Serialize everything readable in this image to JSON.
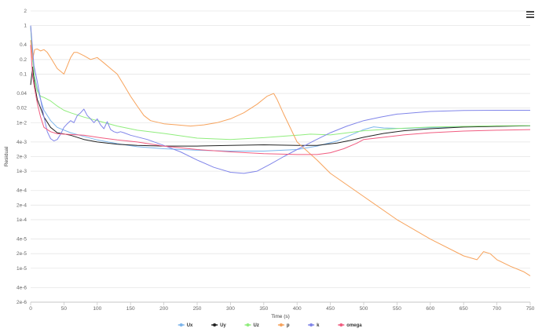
{
  "chart_data": {
    "type": "line",
    "title": "",
    "xlabel": "Time (s)",
    "ylabel": "Residual",
    "xlim": [
      0,
      750
    ],
    "ylog": true,
    "xticks": [
      0,
      50,
      100,
      150,
      200,
      250,
      300,
      350,
      400,
      450,
      500,
      550,
      600,
      650,
      700,
      750
    ],
    "yticks": [
      {
        "value": 2,
        "label": "2"
      },
      {
        "value": 1,
        "label": "1"
      },
      {
        "value": 0.4,
        "label": "0.4"
      },
      {
        "value": 0.2,
        "label": "0.2"
      },
      {
        "value": 0.1,
        "label": "0.1"
      },
      {
        "value": 0.04,
        "label": "0.04"
      },
      {
        "value": 0.02,
        "label": "0.02"
      },
      {
        "value": 0.01,
        "label": "1e-2"
      },
      {
        "value": 0.004,
        "label": "4e-3"
      },
      {
        "value": 0.002,
        "label": "2e-3"
      },
      {
        "value": 0.001,
        "label": "1e-3"
      },
      {
        "value": 0.0004,
        "label": "4e-4"
      },
      {
        "value": 0.0002,
        "label": "2e-4"
      },
      {
        "value": 0.0001,
        "label": "1e-4"
      },
      {
        "value": 4e-05,
        "label": "4e-5"
      },
      {
        "value": 2e-05,
        "label": "2e-5"
      },
      {
        "value": 1e-05,
        "label": "1e-5"
      },
      {
        "value": 4e-06,
        "label": "4e-6"
      },
      {
        "value": 2e-06,
        "label": "2e-6"
      }
    ],
    "grid": true,
    "legend_position": "bottom",
    "series": [
      {
        "name": "Ux",
        "color": "#7cb5ec",
        "x": [
          0,
          3,
          6,
          10,
          15,
          20,
          30,
          40,
          60,
          80,
          100,
          130,
          160,
          200,
          250,
          300,
          350,
          400,
          430,
          460,
          480,
          500,
          515,
          530,
          560,
          600,
          650,
          700,
          750
        ],
        "y": [
          1,
          0.2,
          0.09,
          0.05,
          0.03,
          0.018,
          0.011,
          0.008,
          0.0062,
          0.0052,
          0.0044,
          0.0037,
          0.0032,
          0.0029,
          0.0027,
          0.0026,
          0.0026,
          0.0028,
          0.0033,
          0.0042,
          0.0055,
          0.0072,
          0.0082,
          0.0078,
          0.0076,
          0.0079,
          0.0083,
          0.0085,
          0.0086
        ]
      },
      {
        "name": "Uy",
        "color": "#222222",
        "x": [
          0,
          3,
          6,
          10,
          15,
          20,
          30,
          40,
          60,
          80,
          100,
          130,
          160,
          200,
          250,
          300,
          350,
          400,
          430,
          460,
          480,
          500,
          530,
          560,
          600,
          650,
          700,
          750
        ],
        "y": [
          0.06,
          0.14,
          0.06,
          0.03,
          0.02,
          0.013,
          0.008,
          0.0062,
          0.0055,
          0.0045,
          0.004,
          0.0036,
          0.0034,
          0.0033,
          0.0033,
          0.0034,
          0.0035,
          0.0034,
          0.0034,
          0.0038,
          0.0043,
          0.005,
          0.006,
          0.0068,
          0.0075,
          0.0081,
          0.0084,
          0.0086
        ]
      },
      {
        "name": "Uz",
        "color": "#90ed7d",
        "x": [
          0,
          3,
          6,
          10,
          15,
          20,
          30,
          40,
          50,
          60,
          80,
          100,
          130,
          160,
          200,
          250,
          300,
          350,
          400,
          420,
          450,
          500,
          550,
          600,
          650,
          700,
          750
        ],
        "y": [
          1,
          0.2,
          0.08,
          0.045,
          0.035,
          0.033,
          0.028,
          0.022,
          0.018,
          0.016,
          0.013,
          0.011,
          0.0085,
          0.007,
          0.006,
          0.0048,
          0.0045,
          0.0049,
          0.0055,
          0.0058,
          0.0056,
          0.0068,
          0.0076,
          0.0081,
          0.0084,
          0.0086,
          0.0087
        ]
      },
      {
        "name": "p",
        "color": "#f7a35c",
        "x": [
          0,
          3,
          6,
          10,
          15,
          20,
          25,
          30,
          40,
          50,
          60,
          65,
          70,
          80,
          90,
          100,
          110,
          120,
          130,
          140,
          150,
          160,
          170,
          180,
          200,
          220,
          240,
          260,
          280,
          300,
          320,
          340,
          355,
          365,
          370,
          380,
          400,
          430,
          450,
          500,
          550,
          600,
          650,
          670,
          680,
          690,
          700,
          720,
          740,
          750
        ],
        "y": [
          0.5,
          0.2,
          0.32,
          0.33,
          0.3,
          0.32,
          0.28,
          0.22,
          0.13,
          0.1,
          0.22,
          0.28,
          0.28,
          0.24,
          0.2,
          0.22,
          0.17,
          0.13,
          0.1,
          0.06,
          0.035,
          0.022,
          0.014,
          0.011,
          0.0095,
          0.009,
          0.0085,
          0.009,
          0.01,
          0.012,
          0.016,
          0.024,
          0.035,
          0.04,
          0.03,
          0.015,
          0.004,
          0.0017,
          0.0009,
          0.0003,
          0.0001,
          4e-05,
          1.8e-05,
          1.5e-05,
          2.2e-05,
          2e-05,
          1.5e-05,
          1.1e-05,
          8.5e-06,
          7e-06
        ]
      },
      {
        "name": "k",
        "color": "#8085e9",
        "x": [
          0,
          5,
          10,
          15,
          20,
          25,
          30,
          35,
          40,
          45,
          50,
          55,
          60,
          65,
          70,
          75,
          80,
          85,
          90,
          95,
          100,
          105,
          110,
          115,
          120,
          125,
          130,
          135,
          140,
          150,
          175,
          200,
          225,
          250,
          275,
          300,
          320,
          340,
          360,
          380,
          400,
          425,
          450,
          475,
          500,
          525,
          550,
          600,
          650,
          700,
          750
        ],
        "y": [
          1,
          0.15,
          0.07,
          0.03,
          0.013,
          0.0065,
          0.0047,
          0.0042,
          0.0045,
          0.0058,
          0.008,
          0.0095,
          0.011,
          0.01,
          0.014,
          0.016,
          0.019,
          0.014,
          0.012,
          0.01,
          0.012,
          0.009,
          0.0075,
          0.0105,
          0.0072,
          0.0065,
          0.0062,
          0.0065,
          0.0062,
          0.0055,
          0.0045,
          0.0034,
          0.0025,
          0.0017,
          0.0012,
          0.00095,
          0.0009,
          0.001,
          0.0014,
          0.002,
          0.0028,
          0.0042,
          0.0062,
          0.0085,
          0.011,
          0.013,
          0.015,
          0.017,
          0.0178,
          0.018,
          0.018
        ]
      },
      {
        "name": "omega",
        "color": "#f15c80",
        "x": [
          0,
          3,
          6,
          10,
          15,
          20,
          30,
          40,
          60,
          80,
          100,
          130,
          160,
          200,
          250,
          300,
          350,
          400,
          430,
          450,
          470,
          490,
          500,
          530,
          560,
          600,
          650,
          700,
          750
        ],
        "y": [
          0.4,
          0.09,
          0.05,
          0.025,
          0.013,
          0.008,
          0.0065,
          0.0059,
          0.0057,
          0.0055,
          0.005,
          0.0044,
          0.004,
          0.0033,
          0.0028,
          0.0025,
          0.0023,
          0.0022,
          0.0022,
          0.0024,
          0.0029,
          0.0038,
          0.0045,
          0.005,
          0.0056,
          0.0062,
          0.0067,
          0.007,
          0.0072
        ]
      }
    ]
  },
  "legend": {
    "items": [
      {
        "label": "Ux",
        "color": "#7cb5ec"
      },
      {
        "label": "Uy",
        "color": "#222222"
      },
      {
        "label": "Uz",
        "color": "#90ed7d"
      },
      {
        "label": "p",
        "color": "#f7a35c"
      },
      {
        "label": "k",
        "color": "#8085e9"
      },
      {
        "label": "omega",
        "color": "#f15c80"
      }
    ]
  },
  "menu": {
    "icon": "hamburger-menu-icon"
  }
}
